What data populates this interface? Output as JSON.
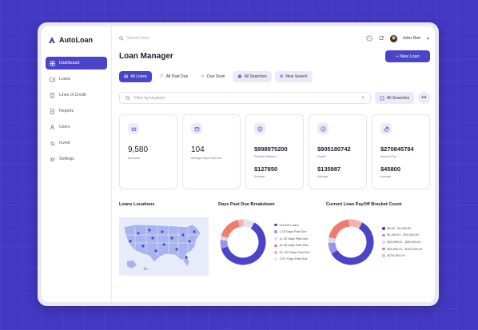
{
  "app": {
    "name": "AutoLoan",
    "brand_color": "#4a45c8"
  },
  "sidebar": {
    "items": [
      {
        "label": "Dashboard",
        "icon": "grid-icon",
        "active": true
      },
      {
        "label": "Loans",
        "icon": "wallet-icon"
      },
      {
        "label": "Lines of Credit",
        "icon": "document-icon"
      },
      {
        "label": "Reports",
        "icon": "report-icon"
      },
      {
        "label": "Users",
        "icon": "user-icon"
      },
      {
        "label": "Invest",
        "icon": "invest-icon"
      },
      {
        "label": "Settings",
        "icon": "gear-icon"
      }
    ]
  },
  "topbar": {
    "search_placeholder": "Search here",
    "user_name": "John Doe"
  },
  "page": {
    "title": "Loan Manager",
    "new_button": "+ New Loan"
  },
  "tabs": [
    {
      "label": "All Loans",
      "active": true
    },
    {
      "label": "All Past Due"
    },
    {
      "label": "Due Soon"
    },
    {
      "label": "All Searches",
      "soft": true
    },
    {
      "label": "New Search",
      "soft": true
    }
  ],
  "filter": {
    "placeholder": "Filter by keyword",
    "all_searches": "All Searches"
  },
  "cards": [
    {
      "value": "9,580",
      "label": "Accounts"
    },
    {
      "value": "104",
      "label": "Average Days Past Due"
    },
    {
      "value": "$998975200",
      "label": "Principle Balance",
      "value2": "$127850",
      "label2": "Average"
    },
    {
      "value": "$905180742",
      "label": "Payoff",
      "value2": "$135987",
      "label2": "Average"
    },
    {
      "value": "$270845784",
      "label": "Amount Due",
      "value2": "$45800",
      "label2": "Average"
    }
  ],
  "locations": {
    "title": "Loans Locations"
  },
  "past_due": {
    "title": "Days Past Due Breakdown",
    "legend": [
      {
        "label": "Current Loans",
        "color": "#4a45c8"
      },
      {
        "label": "1-10 Days Past Due",
        "color": "#9a96e6"
      },
      {
        "label": "11-30 Days Past Due",
        "color": "#d9d8f4"
      },
      {
        "label": "31-60 Days Past Due",
        "color": "#f07a6e"
      },
      {
        "label": "61-120 Days Past Due",
        "color": "#f6b3ab"
      },
      {
        "label": "121+ Days Past Due",
        "color": "#e2e2e8"
      }
    ],
    "segments": [
      62,
      6,
      3,
      17,
      4,
      8
    ]
  },
  "payoff": {
    "title": "Current Loan PayOff Bracket Count",
    "legend": [
      {
        "label": "$0.00 - $1,000.00",
        "color": "#4a45c8"
      },
      {
        "label": "$1,000.01 - $10,000.00",
        "color": "#9a96e6"
      },
      {
        "label": "$10,000.01 - $20,000.00",
        "color": "#d9d8f4"
      },
      {
        "label": "$20,000.01 - $100,000.00",
        "color": "#f07a6e"
      },
      {
        "label": "$100,000.01+",
        "color": "#f6b3ab"
      }
    ],
    "segments": [
      58,
      8,
      4,
      20,
      10
    ]
  }
}
